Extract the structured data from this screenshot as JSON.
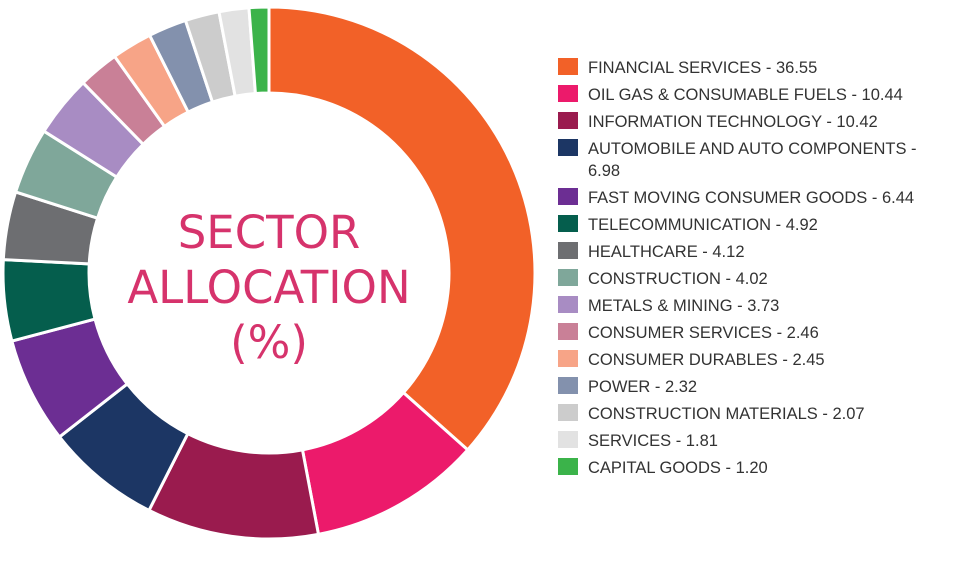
{
  "center_title": {
    "line1": "SECTOR",
    "line2": "ALLOCATION",
    "line3": "(%)"
  },
  "chart_data": {
    "type": "pie",
    "variant": "donut",
    "title": "SECTOR ALLOCATION (%)",
    "legend_position": "right",
    "slices": [
      {
        "label": "FINANCIAL SERVICES - 36.55",
        "name": "FINANCIAL SERVICES",
        "value": 36.55,
        "color": "#f26128"
      },
      {
        "label": "OIL GAS & CONSUMABLE FUELS - 10.44",
        "name": "OIL GAS & CONSUMABLE FUELS",
        "value": 10.44,
        "color": "#ec1a6b"
      },
      {
        "label": "INFORMATION TECHNOLOGY - 10.42",
        "name": "INFORMATION TECHNOLOGY",
        "value": 10.42,
        "color": "#9a1b4e"
      },
      {
        "label": "AUTOMOBILE AND AUTO COMPONENTS - 6.98",
        "name": "AUTOMOBILE AND AUTO COMPONENTS",
        "value": 6.98,
        "color": "#1c3664"
      },
      {
        "label": "FAST MOVING CONSUMER GOODS - 6.44",
        "name": "FAST MOVING CONSUMER GOODS",
        "value": 6.44,
        "color": "#6c2e93"
      },
      {
        "label": "TELECOMMUNICATION - 4.92",
        "name": "TELECOMMUNICATION",
        "value": 4.92,
        "color": "#055e4d"
      },
      {
        "label": "HEALTHCARE - 4.12",
        "name": "HEALTHCARE",
        "value": 4.12,
        "color": "#6d6e71"
      },
      {
        "label": "CONSTRUCTION - 4.02",
        "name": "CONSTRUCTION",
        "value": 4.02,
        "color": "#7fa79a"
      },
      {
        "label": "METALS & MINING - 3.73",
        "name": "METALS & MINING",
        "value": 3.73,
        "color": "#a88cc3"
      },
      {
        "label": "CONSUMER SERVICES - 2.46",
        "name": "CONSUMER SERVICES",
        "value": 2.46,
        "color": "#c98097"
      },
      {
        "label": "CONSUMER DURABLES - 2.45",
        "name": "CONSUMER DURABLES",
        "value": 2.45,
        "color": "#f7a487"
      },
      {
        "label": "POWER - 2.32",
        "name": "POWER",
        "value": 2.32,
        "color": "#8391ad"
      },
      {
        "label": "CONSTRUCTION MATERIALS - 2.07",
        "name": "CONSTRUCTION MATERIALS",
        "value": 2.07,
        "color": "#cccccc"
      },
      {
        "label": "SERVICES - 1.81",
        "name": "SERVICES",
        "value": 1.81,
        "color": "#e2e2e2"
      },
      {
        "label": "CAPITAL GOODS - 1.20",
        "name": "CAPITAL GOODS",
        "value": 1.2,
        "color": "#3bb34a"
      }
    ]
  }
}
